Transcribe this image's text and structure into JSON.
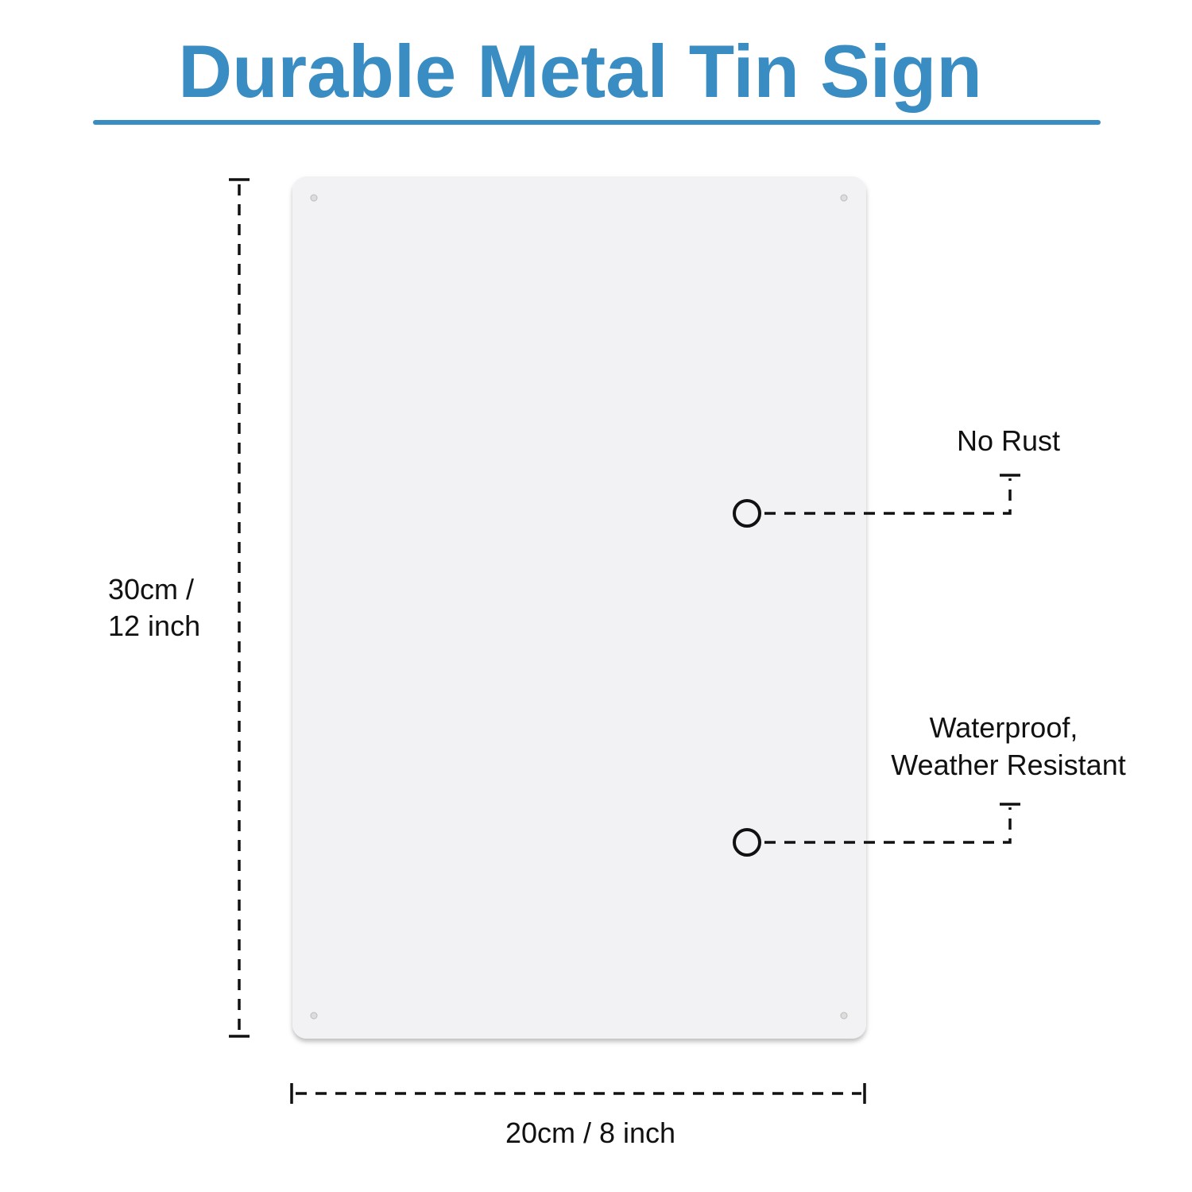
{
  "header": {
    "title": "Durable Metal Tin Sign"
  },
  "dimensions": {
    "height": {
      "lines": [
        "30cm /",
        "12 inch"
      ]
    },
    "width": {
      "label": "20cm / 8 inch"
    }
  },
  "callouts": [
    {
      "lines": [
        "No Rust"
      ]
    },
    {
      "lines": [
        "Waterproof,",
        "Weather Resistant"
      ]
    }
  ]
}
